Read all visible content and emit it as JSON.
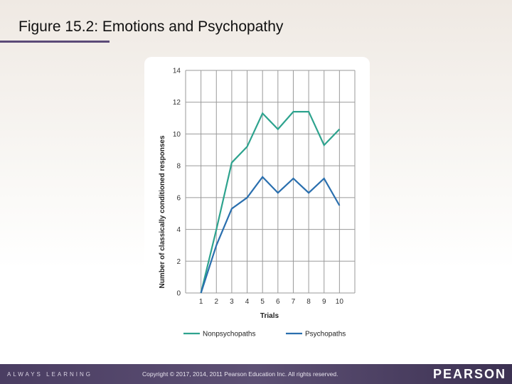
{
  "slide": {
    "title": "Figure 15.2: Emotions and Psychopathy"
  },
  "footer": {
    "tagline": "ALWAYS LEARNING",
    "copyright": "Copyright © 2017, 2014, 2011 Pearson Education Inc. All rights reserved.",
    "brand": "PEARSON"
  },
  "colors": {
    "nonpsychopaths": "#2ea38e",
    "psychopaths": "#2a6fae",
    "grid": "#9a9a9a"
  },
  "chart_data": {
    "type": "line",
    "title": "",
    "xlabel": "Trials",
    "ylabel": "Number of classically conditioned responses",
    "x": [
      1,
      2,
      3,
      4,
      5,
      6,
      7,
      8,
      9,
      10
    ],
    "xticks": [
      "1",
      "2",
      "3",
      "4",
      "5",
      "6",
      "7",
      "8",
      "9",
      "10"
    ],
    "yticks": [
      "0",
      "2",
      "4",
      "6",
      "8",
      "10",
      "12",
      "14"
    ],
    "ylim": [
      0,
      14
    ],
    "grid": true,
    "legend_position": "bottom",
    "series": [
      {
        "name": "Nonpsychopaths",
        "values": [
          0,
          4.0,
          8.2,
          9.2,
          11.3,
          10.3,
          11.4,
          11.4,
          9.3,
          10.3
        ]
      },
      {
        "name": "Psychopaths",
        "values": [
          0,
          3.0,
          5.3,
          6.0,
          7.3,
          6.3,
          7.2,
          6.3,
          7.2,
          5.5
        ]
      }
    ]
  }
}
